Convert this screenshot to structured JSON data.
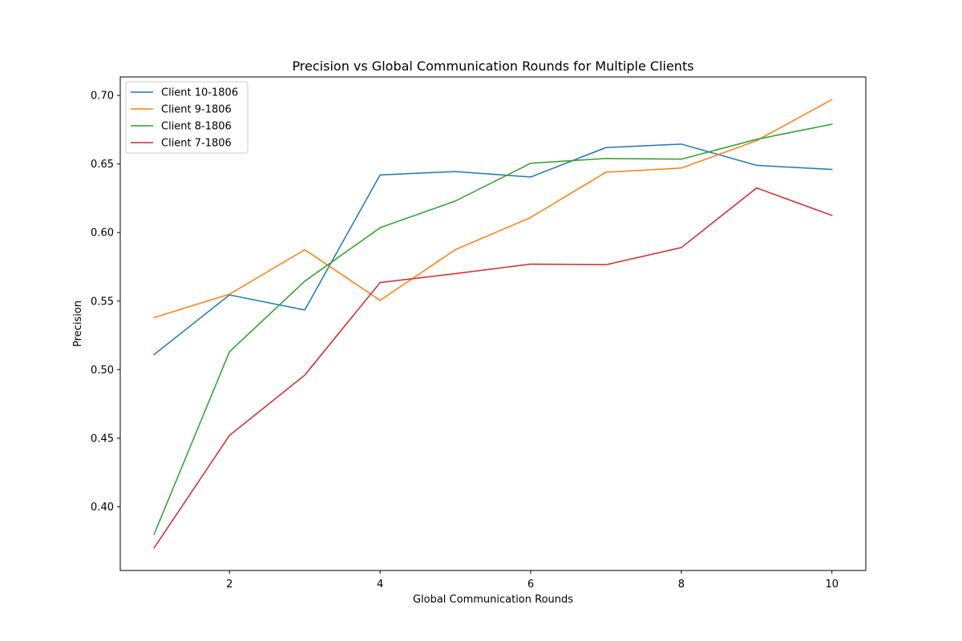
{
  "chart_data": {
    "type": "line",
    "title": "Precision vs Global Communication Rounds for Multiple Clients",
    "xlabel": "Global Communication Rounds",
    "ylabel": "Precision",
    "xlim": [
      0.55,
      10.45
    ],
    "ylim": [
      0.3535,
      0.7135
    ],
    "xticks": [
      2,
      4,
      6,
      8,
      10
    ],
    "xtick_labels": [
      "2",
      "4",
      "6",
      "8",
      "10"
    ],
    "yticks": [
      0.4,
      0.45,
      0.5,
      0.55,
      0.6,
      0.65,
      0.7
    ],
    "ytick_labels": [
      "0.40",
      "0.45",
      "0.50",
      "0.55",
      "0.60",
      "0.65",
      "0.70"
    ],
    "grid": false,
    "legend_position": "top-left",
    "x": [
      1,
      2,
      3,
      4,
      5,
      6,
      7,
      8,
      9,
      10
    ],
    "series": [
      {
        "name": "Client 10-1806",
        "color": "#1f77b4",
        "values": [
          0.511,
          0.5545,
          0.5435,
          0.642,
          0.6445,
          0.6405,
          0.662,
          0.6645,
          0.649,
          0.646
        ]
      },
      {
        "name": "Client 9-1806",
        "color": "#ff7f0e",
        "values": [
          0.538,
          0.555,
          0.5875,
          0.5505,
          0.5875,
          0.611,
          0.644,
          0.647,
          0.667,
          0.697
        ]
      },
      {
        "name": "Client 8-1806",
        "color": "#2ca02c",
        "values": [
          0.38,
          0.513,
          0.5645,
          0.6035,
          0.623,
          0.6505,
          0.654,
          0.6535,
          0.668,
          0.679
        ]
      },
      {
        "name": "Client 7-1806",
        "color": "#d62728",
        "values": [
          0.37,
          0.452,
          0.496,
          0.5635,
          0.57,
          0.577,
          0.5765,
          0.589,
          0.6325,
          0.6125
        ]
      }
    ]
  }
}
